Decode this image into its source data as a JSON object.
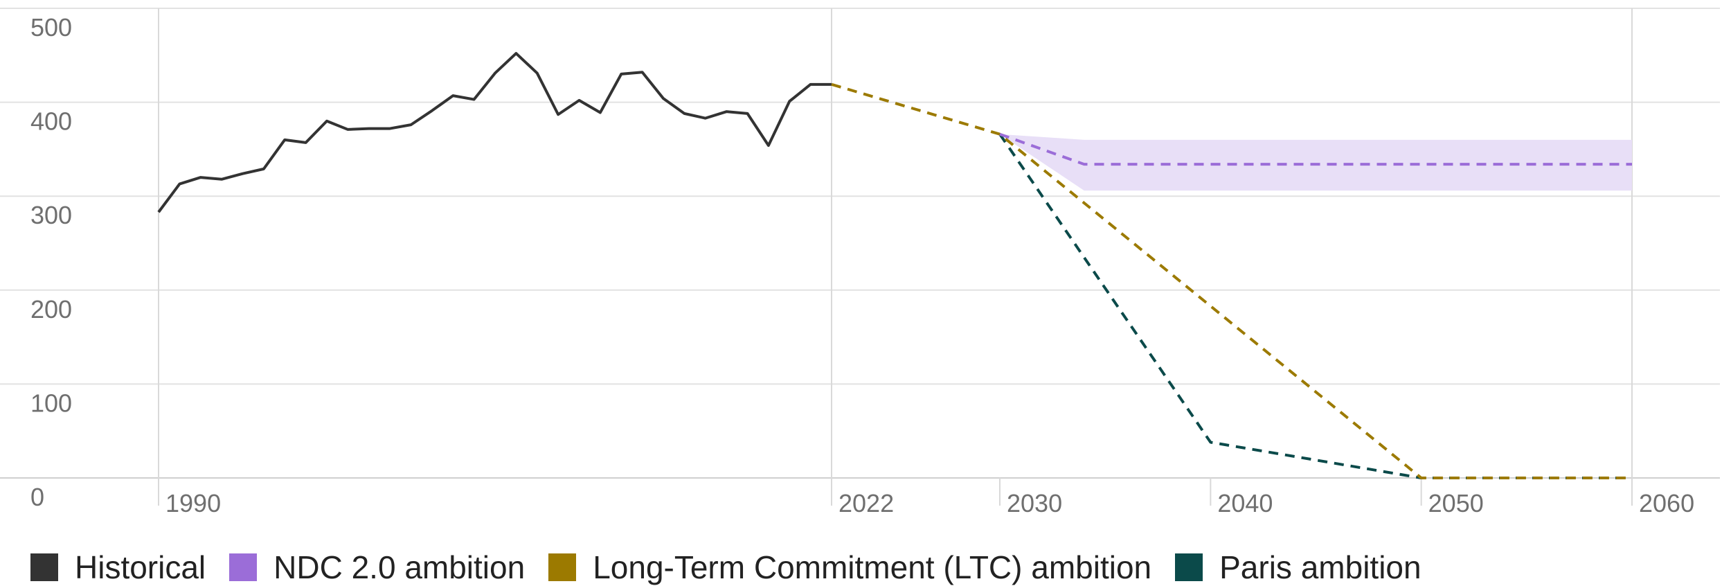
{
  "chart_data": {
    "type": "line",
    "title": "",
    "xlabel": "",
    "ylabel": "",
    "ylim": [
      0,
      500
    ],
    "y_ticks": [
      "0",
      "100",
      "200",
      "300",
      "400",
      "500"
    ],
    "x_ticks": [
      "1990",
      "2022",
      "2030",
      "2040",
      "2050",
      "2060"
    ],
    "grid": true,
    "legend_position": "bottom",
    "series": [
      {
        "name": "Historical",
        "color": "#333333",
        "style": "solid",
        "x": [
          1990,
          1991,
          1992,
          1993,
          1994,
          1995,
          1996,
          1997,
          1998,
          1999,
          2000,
          2001,
          2002,
          2003,
          2004,
          2005,
          2006,
          2007,
          2008,
          2009,
          2010,
          2011,
          2012,
          2013,
          2014,
          2015,
          2016,
          2017,
          2018,
          2019,
          2020,
          2021,
          2022
        ],
        "values": [
          283,
          313,
          320,
          318,
          324,
          329,
          360,
          357,
          380,
          371,
          372,
          372,
          376,
          391,
          407,
          403,
          431,
          452,
          431,
          387,
          402,
          389,
          430,
          432,
          404,
          388,
          383,
          390,
          388,
          354,
          401,
          419,
          419
        ]
      },
      {
        "name": "NDC 2.0 ambition",
        "color": "#9b6dd8",
        "style": "dashed",
        "x": [
          2030,
          2034,
          2060
        ],
        "values": [
          366,
          334,
          334
        ],
        "band_upper": [
          366,
          360,
          360
        ],
        "band_lower": [
          366,
          306,
          306
        ],
        "band_color": "#e8dff7"
      },
      {
        "name": "Long-Term Commitment (LTC) ambition",
        "color": "#9c7a00",
        "style": "dashed",
        "x": [
          2022,
          2030,
          2050,
          2060
        ],
        "values": [
          419,
          366,
          0,
          0
        ]
      },
      {
        "name": "Paris ambition",
        "color": "#0b4a4a",
        "style": "dashed",
        "x": [
          2030,
          2040,
          2050,
          2060
        ],
        "values": [
          366,
          38,
          0,
          0
        ]
      }
    ]
  }
}
